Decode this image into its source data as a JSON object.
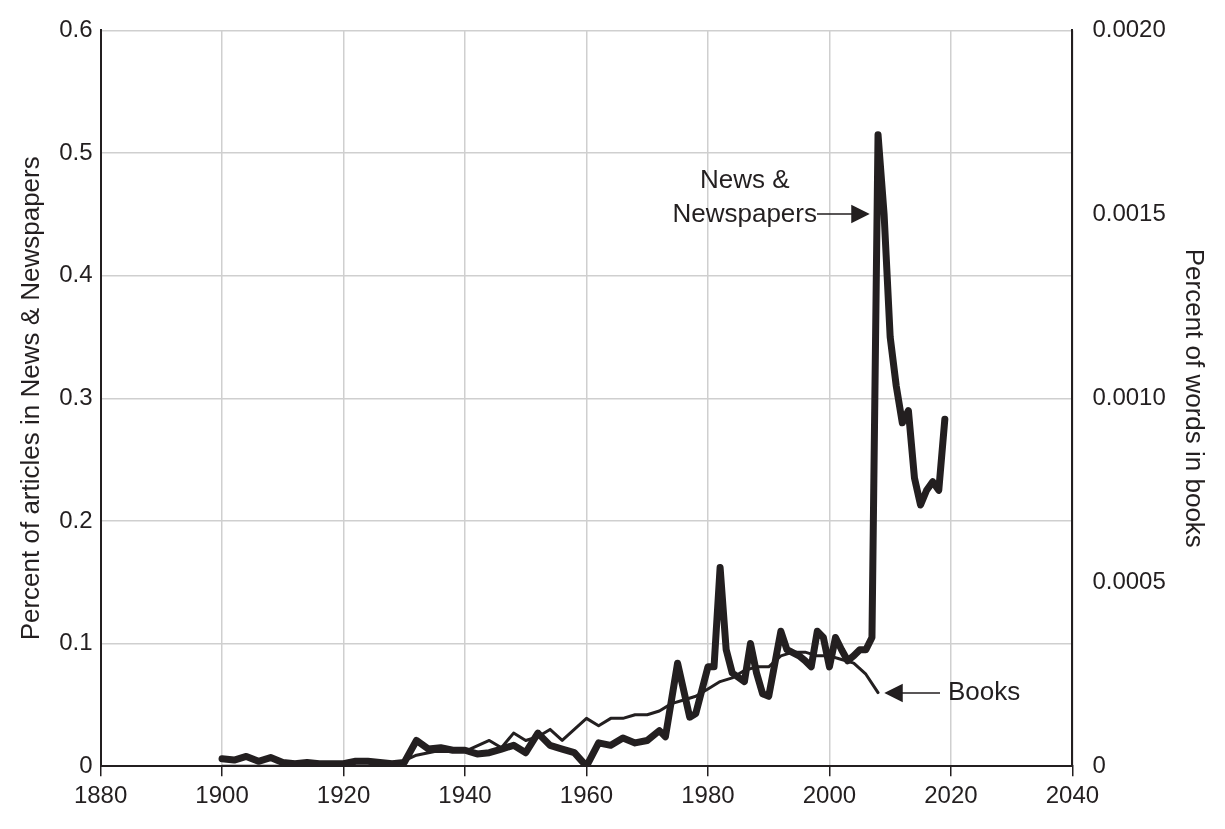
{
  "chart_data": {
    "type": "line",
    "xlabel": null,
    "ylabel": "Percent of articles in News & Newspapers",
    "y2label": "Percent of words in books",
    "xlim": [
      1880,
      2040
    ],
    "xticks": [
      1880,
      1900,
      1920,
      1940,
      1960,
      1980,
      2000,
      2020,
      2040
    ],
    "ylim": [
      0,
      0.6
    ],
    "yticks": [
      0,
      0.1,
      0.2,
      0.3,
      0.4,
      0.5,
      0.6
    ],
    "y2lim": [
      0,
      0.002
    ],
    "y2ticks": [
      {
        "value": 0,
        "label": "0"
      },
      {
        "value": 0.0005,
        "label": "0.0005"
      },
      {
        "value": 0.001,
        "label": "0.0010"
      },
      {
        "value": 0.0015,
        "label": "0.0015"
      },
      {
        "value": 0.002,
        "label": "0.0020"
      }
    ],
    "grid": true,
    "legend": false,
    "marker": "none",
    "line_style": "solid",
    "series": [
      {
        "color": "#231f20",
        "x": [
          1900,
          1902,
          1904,
          1906,
          1908,
          1910,
          1912,
          1914,
          1916,
          1918,
          1920,
          1922,
          1924,
          1926,
          1928,
          1930,
          1932,
          1934,
          1936,
          1938,
          1940,
          1942,
          1944,
          1946,
          1948,
          1950,
          1952,
          1954,
          1956,
          1958,
          1960,
          1962,
          1964,
          1966,
          1968,
          1970,
          1972,
          1973,
          1975,
          1977,
          1978,
          1980,
          1981,
          1982,
          1983,
          1984,
          1986,
          1987,
          1988,
          1989,
          1990,
          1992,
          1993,
          1995,
          1996,
          1997,
          1998,
          1999,
          2000,
          2001,
          2002,
          2003,
          2004,
          2005,
          2006,
          2007,
          2008,
          2009,
          2010,
          2011,
          2012,
          2013,
          2014,
          2015,
          2016,
          2017,
          2018,
          2019
        ],
        "values": [
          0.006,
          0.005,
          0.008,
          0.004,
          0.007,
          0.003,
          0.002,
          0.003,
          0.002,
          0.002,
          0.002,
          0.004,
          0.004,
          0.003,
          0.002,
          0.003,
          0.021,
          0.014,
          0.015,
          0.013,
          0.013,
          0.01,
          0.011,
          0.014,
          0.017,
          0.011,
          0.027,
          0.017,
          0.014,
          0.011,
          0.0,
          0.019,
          0.017,
          0.023,
          0.019,
          0.021,
          0.029,
          0.024,
          0.084,
          0.04,
          0.043,
          0.081,
          0.081,
          0.162,
          0.095,
          0.076,
          0.069,
          0.1,
          0.076,
          0.059,
          0.057,
          0.11,
          0.095,
          0.09,
          0.086,
          0.081,
          0.11,
          0.105,
          0.081,
          0.105,
          0.095,
          0.086,
          0.09,
          0.095,
          0.095,
          0.105,
          0.515,
          0.45,
          0.35,
          0.31,
          0.28,
          0.29,
          0.235,
          0.213,
          0.225,
          0.232,
          0.225,
          0.283
        ]
      },
      {
        "color": "#231f20",
        "axis": "y2",
        "x": [
          1900,
          1910,
          1920,
          1928,
          1932,
          1935,
          1940,
          1944,
          1946,
          1948,
          1950,
          1952,
          1954,
          1956,
          1958,
          1960,
          1962,
          1964,
          1966,
          1968,
          1970,
          1972,
          1974,
          1976,
          1978,
          1980,
          1982,
          1984,
          1986,
          1988,
          1990,
          1992,
          1994,
          1996,
          1998,
          2000,
          2002,
          2004,
          2006,
          2008
        ],
        "values": [
          0,
          0,
          0,
          0,
          3e-05,
          4e-05,
          4e-05,
          7e-05,
          5e-05,
          9e-05,
          7e-05,
          8e-05,
          0.0001,
          7e-05,
          0.0001,
          0.00013,
          0.00011,
          0.00013,
          0.00013,
          0.00014,
          0.00014,
          0.00015,
          0.00017,
          0.00018,
          0.00019,
          0.00021,
          0.00023,
          0.00024,
          0.00026,
          0.00027,
          0.00027,
          0.0003,
          0.00031,
          0.00031,
          0.0003,
          0.0003,
          0.00029,
          0.00028,
          0.00025,
          0.0002
        ]
      }
    ],
    "annotations": [
      {
        "text": "News & Newspapers",
        "x": 2007,
        "y": 0.45
      },
      "Books"
    ]
  }
}
